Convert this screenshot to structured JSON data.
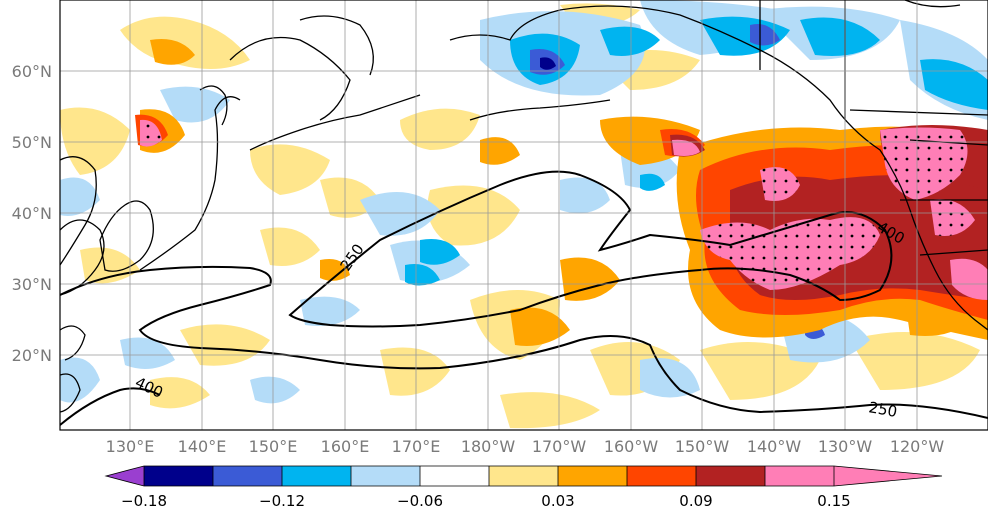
{
  "map": {
    "lon_labels": [
      "130°E",
      "140°E",
      "150°E",
      "160°E",
      "170°E",
      "180°W",
      "170°W",
      "160°W",
      "150°W",
      "140°W",
      "130°W",
      "120°W"
    ],
    "lat_labels": [
      "60°N",
      "50°N",
      "40°N",
      "30°N",
      "20°N"
    ],
    "contour_labels": [
      "250",
      "400",
      "400",
      "250"
    ]
  },
  "colorbar": {
    "tick_labels": [
      "−0.18",
      "−0.12",
      "−0.06",
      "0.03",
      "0.09",
      "0.15"
    ],
    "colors": [
      "#9a3fd0",
      "#00008b",
      "#3b5bd6",
      "#00b4f0",
      "#b4dcf8",
      "#ffffff",
      "#ffe68c",
      "#ffa500",
      "#ff4500",
      "#b22222",
      "#ff7eb6"
    ]
  }
}
